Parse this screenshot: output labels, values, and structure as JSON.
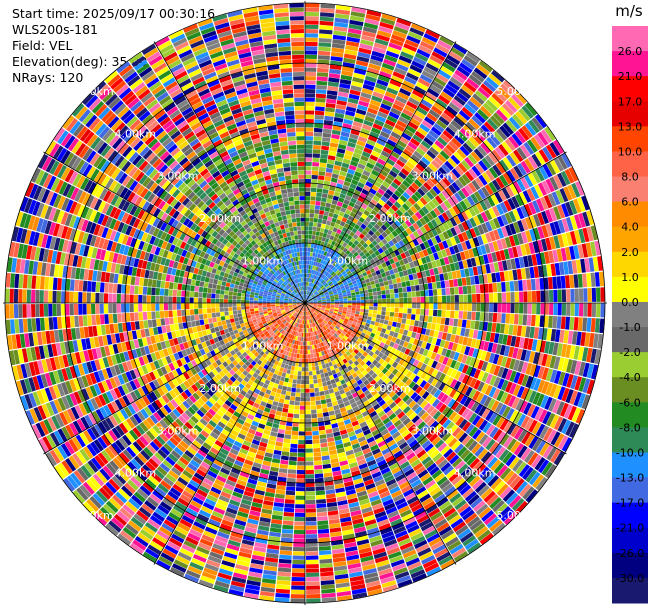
{
  "info": {
    "start_time": "Start time: 2025/09/17 00:30:16",
    "instrument": "WLS200s-181",
    "field": "Field: VEL",
    "elevation": "Elevation(deg): 35.00",
    "nrays": "NRays: 120"
  },
  "chart_data": {
    "type": "ppi",
    "field": "VEL",
    "units": "m/s",
    "nrays": 120,
    "range_rings_km": [
      1.0,
      2.0,
      3.0,
      4.0,
      5.0
    ],
    "ring_labels": [
      "1.00km",
      "2.00km",
      "3.00km",
      "4.00km",
      "5.00km"
    ],
    "colorbar": {
      "label": "m/s",
      "ticks": [
        "26.0",
        "21.0",
        "17.0",
        "13.0",
        "10.0",
        "8.0",
        "6.0",
        "4.0",
        "2.0",
        "1.0",
        "0.0",
        "-1.0",
        "-2.0",
        "-4.0",
        "-6.0",
        "-8.0",
        "-10.0",
        "-13.0",
        "-17.0",
        "-21.0",
        "-26.0",
        "-30.0"
      ],
      "colors": [
        "#ff69b4",
        "#ff1493",
        "#ff0000",
        "#e60000",
        "#ff4500",
        "#ff6347",
        "#fa8072",
        "#ff8c00",
        "#ffa500",
        "#ffd700",
        "#ffff00",
        "#808080",
        "#696969",
        "#9acd32",
        "#6b8e23",
        "#228b22",
        "#2e8b57",
        "#1e90ff",
        "#4169e1",
        "#0000ff",
        "#0000cd",
        "#000080",
        "#191970"
      ]
    }
  }
}
